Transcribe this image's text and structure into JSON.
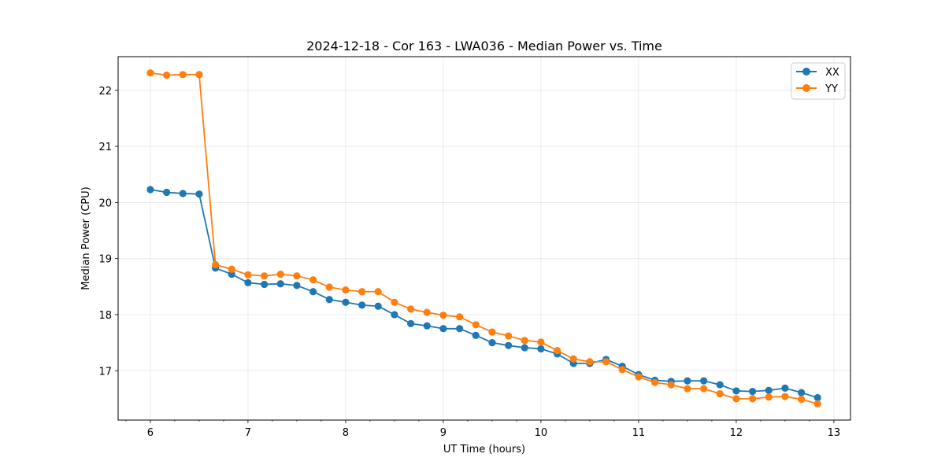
{
  "chart_data": {
    "type": "line",
    "title": "2024-12-18 - Cor 163 - LWA036 - Median Power vs. Time",
    "xlabel": "UT Time (hours)",
    "ylabel": "Median Power (CPU)",
    "xlim": [
      5.67,
      13.17
    ],
    "ylim": [
      16.12,
      22.6
    ],
    "xticks": [
      6,
      7,
      8,
      9,
      10,
      11,
      12,
      13
    ],
    "yticks": [
      17,
      18,
      19,
      20,
      21,
      22
    ],
    "x_minor_step": 0.25,
    "grid": true,
    "legend_position": "top-right",
    "x": [
      6.0,
      6.167,
      6.333,
      6.5,
      6.667,
      6.833,
      7.0,
      7.167,
      7.333,
      7.5,
      7.667,
      7.833,
      8.0,
      8.167,
      8.333,
      8.5,
      8.667,
      8.833,
      9.0,
      9.167,
      9.333,
      9.5,
      9.667,
      9.833,
      10.0,
      10.167,
      10.333,
      10.5,
      10.667,
      10.833,
      11.0,
      11.167,
      11.333,
      11.5,
      11.667,
      11.833,
      12.0,
      12.167,
      12.333,
      12.5,
      12.667,
      12.833
    ],
    "series": [
      {
        "name": "XX",
        "color": "#1f77b4",
        "values": [
          20.23,
          20.18,
          20.16,
          20.15,
          18.83,
          18.72,
          18.57,
          18.54,
          18.55,
          18.52,
          18.41,
          18.27,
          18.22,
          18.17,
          18.15,
          18.0,
          17.84,
          17.8,
          17.75,
          17.75,
          17.63,
          17.5,
          17.45,
          17.41,
          17.39,
          17.3,
          17.13,
          17.13,
          17.2,
          17.08,
          16.93,
          16.83,
          16.81,
          16.82,
          16.82,
          16.75,
          16.64,
          16.63,
          16.65,
          16.69,
          16.61,
          16.52
        ]
      },
      {
        "name": "YY",
        "color": "#ff7f0e",
        "values": [
          22.31,
          22.27,
          22.28,
          22.28,
          18.89,
          18.81,
          18.71,
          18.69,
          18.72,
          18.69,
          18.62,
          18.49,
          18.44,
          18.41,
          18.41,
          18.22,
          18.1,
          18.04,
          17.99,
          17.96,
          17.82,
          17.69,
          17.62,
          17.54,
          17.51,
          17.36,
          17.21,
          17.16,
          17.16,
          17.02,
          16.89,
          16.79,
          16.75,
          16.68,
          16.68,
          16.59,
          16.5,
          16.5,
          16.53,
          16.54,
          16.49,
          16.41
        ]
      }
    ]
  }
}
